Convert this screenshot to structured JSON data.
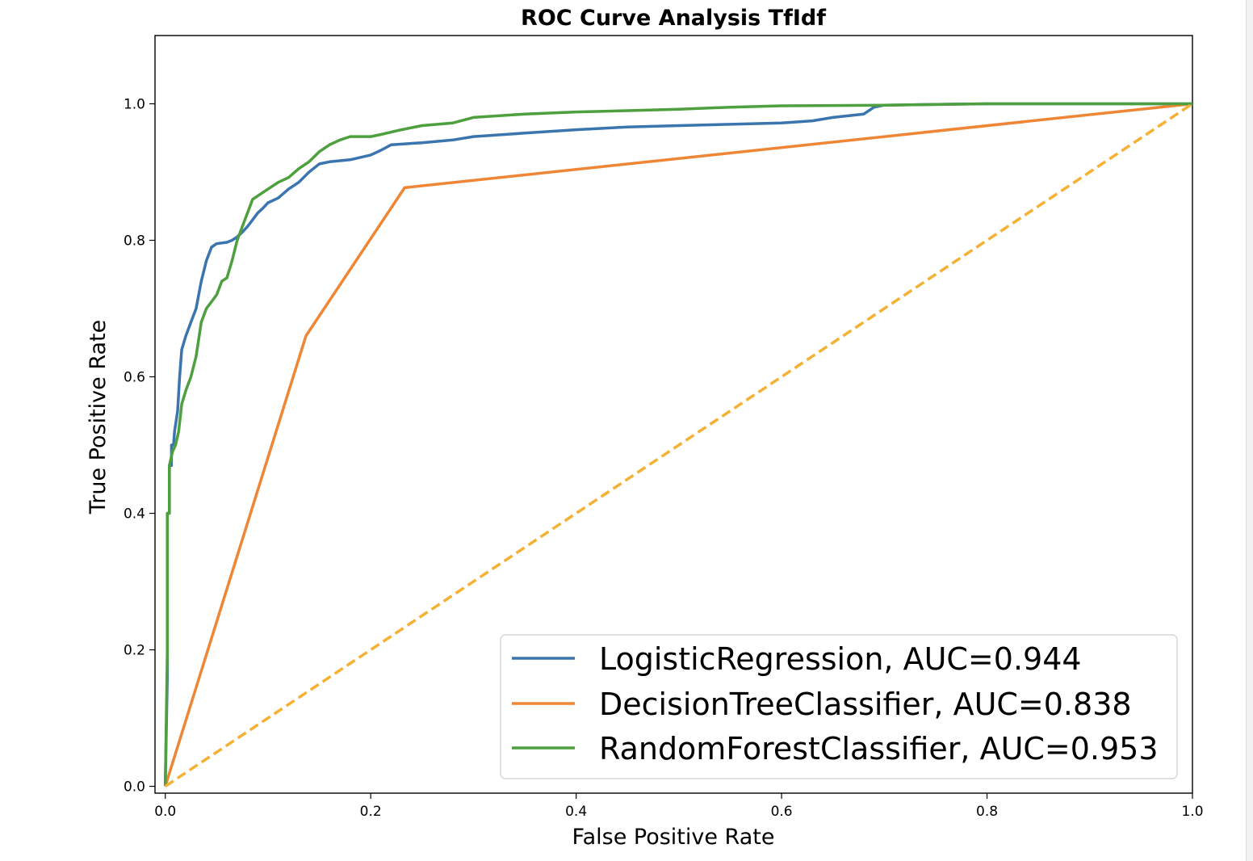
{
  "chart_data": {
    "type": "line",
    "title": "ROC Curve Analysis TfIdf",
    "xlabel": "False Positive Rate",
    "ylabel": "True Positive Rate",
    "xlim": [
      -0.01,
      1.0
    ],
    "ylim": [
      -0.01,
      1.1
    ],
    "xticks": [
      0.0,
      0.2,
      0.4,
      0.6,
      0.8,
      1.0
    ],
    "xtick_labels": [
      "0.0",
      "0.2",
      "0.4",
      "0.6",
      "0.8",
      "1.0"
    ],
    "yticks": [
      0.0,
      0.2,
      0.4,
      0.6,
      0.8,
      1.0
    ],
    "ytick_labels": [
      "0.0",
      "0.2",
      "0.4",
      "0.6",
      "0.8",
      "1.0"
    ],
    "grid": false,
    "legend_position": "lower-right",
    "series": [
      {
        "name": "LogisticRegression, AUC=0.944",
        "color": "#3b75af",
        "style": "solid",
        "x": [
          0.0,
          0.002,
          0.002,
          0.004,
          0.004,
          0.006,
          0.006,
          0.008,
          0.009,
          0.012,
          0.014,
          0.016,
          0.02,
          0.025,
          0.03,
          0.035,
          0.04,
          0.045,
          0.05,
          0.06,
          0.065,
          0.07,
          0.075,
          0.08,
          0.085,
          0.09,
          0.095,
          0.1,
          0.11,
          0.12,
          0.13,
          0.14,
          0.15,
          0.16,
          0.18,
          0.2,
          0.21,
          0.22,
          0.25,
          0.28,
          0.3,
          0.35,
          0.4,
          0.45,
          0.5,
          0.55,
          0.6,
          0.63,
          0.65,
          0.68,
          0.69,
          0.7,
          0.75,
          0.8,
          1.0
        ],
        "y": [
          0.0,
          0.16,
          0.4,
          0.4,
          0.47,
          0.47,
          0.5,
          0.5,
          0.52,
          0.55,
          0.6,
          0.64,
          0.66,
          0.68,
          0.7,
          0.74,
          0.77,
          0.79,
          0.795,
          0.797,
          0.8,
          0.805,
          0.812,
          0.82,
          0.83,
          0.84,
          0.847,
          0.855,
          0.862,
          0.875,
          0.885,
          0.9,
          0.912,
          0.915,
          0.918,
          0.925,
          0.932,
          0.94,
          0.943,
          0.947,
          0.952,
          0.957,
          0.962,
          0.966,
          0.968,
          0.97,
          0.972,
          0.975,
          0.98,
          0.985,
          0.995,
          0.998,
          0.999,
          1.0,
          1.0
        ]
      },
      {
        "name": "DecisionTreeClassifier, AUC=0.838",
        "color": "#ef8636",
        "style": "solid",
        "x": [
          0.0,
          0.137,
          0.233,
          1.0
        ],
        "y": [
          0.0,
          0.66,
          0.877,
          1.0
        ]
      },
      {
        "name": "RandomForestClassifier, AUC=0.953",
        "color": "#4e9f3d",
        "style": "solid",
        "x": [
          0.0,
          0.002,
          0.002,
          0.004,
          0.004,
          0.007,
          0.01,
          0.013,
          0.016,
          0.02,
          0.025,
          0.03,
          0.035,
          0.04,
          0.045,
          0.05,
          0.055,
          0.06,
          0.065,
          0.07,
          0.075,
          0.08,
          0.085,
          0.09,
          0.1,
          0.11,
          0.12,
          0.13,
          0.14,
          0.15,
          0.16,
          0.17,
          0.18,
          0.2,
          0.21,
          0.23,
          0.25,
          0.28,
          0.3,
          0.35,
          0.4,
          0.45,
          0.5,
          0.55,
          0.6,
          0.7,
          0.8,
          1.0
        ],
        "y": [
          0.0,
          0.2,
          0.4,
          0.4,
          0.47,
          0.49,
          0.5,
          0.52,
          0.56,
          0.58,
          0.6,
          0.63,
          0.68,
          0.7,
          0.71,
          0.72,
          0.74,
          0.745,
          0.77,
          0.8,
          0.82,
          0.84,
          0.86,
          0.865,
          0.875,
          0.885,
          0.892,
          0.905,
          0.915,
          0.93,
          0.94,
          0.947,
          0.952,
          0.952,
          0.955,
          0.962,
          0.968,
          0.972,
          0.98,
          0.985,
          0.988,
          0.99,
          0.992,
          0.995,
          0.997,
          0.998,
          1.0,
          1.0
        ]
      },
      {
        "color": "#f5b133",
        "style": "dashed",
        "x": [
          0.0,
          1.0
        ],
        "y": [
          0.0,
          1.0
        ]
      }
    ]
  }
}
